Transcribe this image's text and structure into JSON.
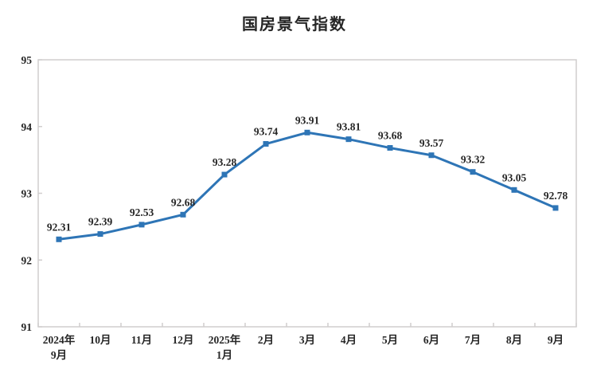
{
  "chart_data": {
    "type": "line",
    "title": "国房景气指数",
    "categories": [
      [
        "2024年",
        "9月"
      ],
      [
        "10月"
      ],
      [
        "11月"
      ],
      [
        "12月"
      ],
      [
        "2025年",
        "1月"
      ],
      [
        "2月"
      ],
      [
        "3月"
      ],
      [
        "4月"
      ],
      [
        "5月"
      ],
      [
        "6月"
      ],
      [
        "7月"
      ],
      [
        "8月"
      ],
      [
        "9月"
      ]
    ],
    "values": [
      92.31,
      92.39,
      92.53,
      92.68,
      93.28,
      93.74,
      93.91,
      93.81,
      93.68,
      93.57,
      93.32,
      93.05,
      92.78
    ],
    "data_labels": [
      "92.31",
      "92.39",
      "92.53",
      "92.68",
      "93.28",
      "93.74",
      "93.91",
      "93.81",
      "93.68",
      "93.57",
      "93.32",
      "93.05",
      "92.78"
    ],
    "xlabel": "",
    "ylabel": "",
    "ylim": [
      91,
      95
    ],
    "yticks": [
      "91",
      "92",
      "93",
      "94",
      "95"
    ],
    "grid": false,
    "legend_position": "none",
    "marker": "square",
    "colors": {
      "line": "#2E75B6",
      "marker": "#2E75B6",
      "axis": "#D0CECE",
      "text": "#262626",
      "background": "#FFFFFF"
    }
  }
}
